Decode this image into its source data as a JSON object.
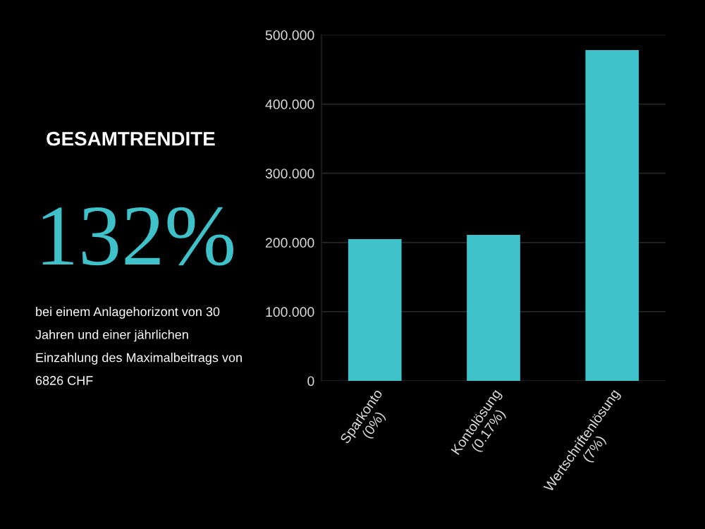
{
  "chart_data": {
    "type": "bar",
    "title": "GESAMTRENDITE",
    "subtitle": "132%",
    "annotations": [
      "bei einem Anlagehorizont von 30\nJahren und einer jährlichen\nEinzahlung des Maximalbeitrags von\n6826 CHF"
    ],
    "categories": [
      "Sparkonto\n(0%)",
      "Kontolösung\n(0.17%)",
      "Wertschriftenlösung\n(7%)"
    ],
    "values": [
      205,
      211,
      478
    ],
    "color": "#3fc1c9",
    "ylim": [
      0,
      500
    ],
    "yticks": [
      0,
      {
        "value": 100,
        "label": "100.000"
      },
      {
        "value": 200,
        "label": "200.000"
      },
      {
        "value": 300,
        "label": "300.000"
      },
      {
        "value": 400,
        "label": "400.000"
      },
      {
        "value": 500,
        "label": "500.000"
      }
    ],
    "grid": "y"
  }
}
